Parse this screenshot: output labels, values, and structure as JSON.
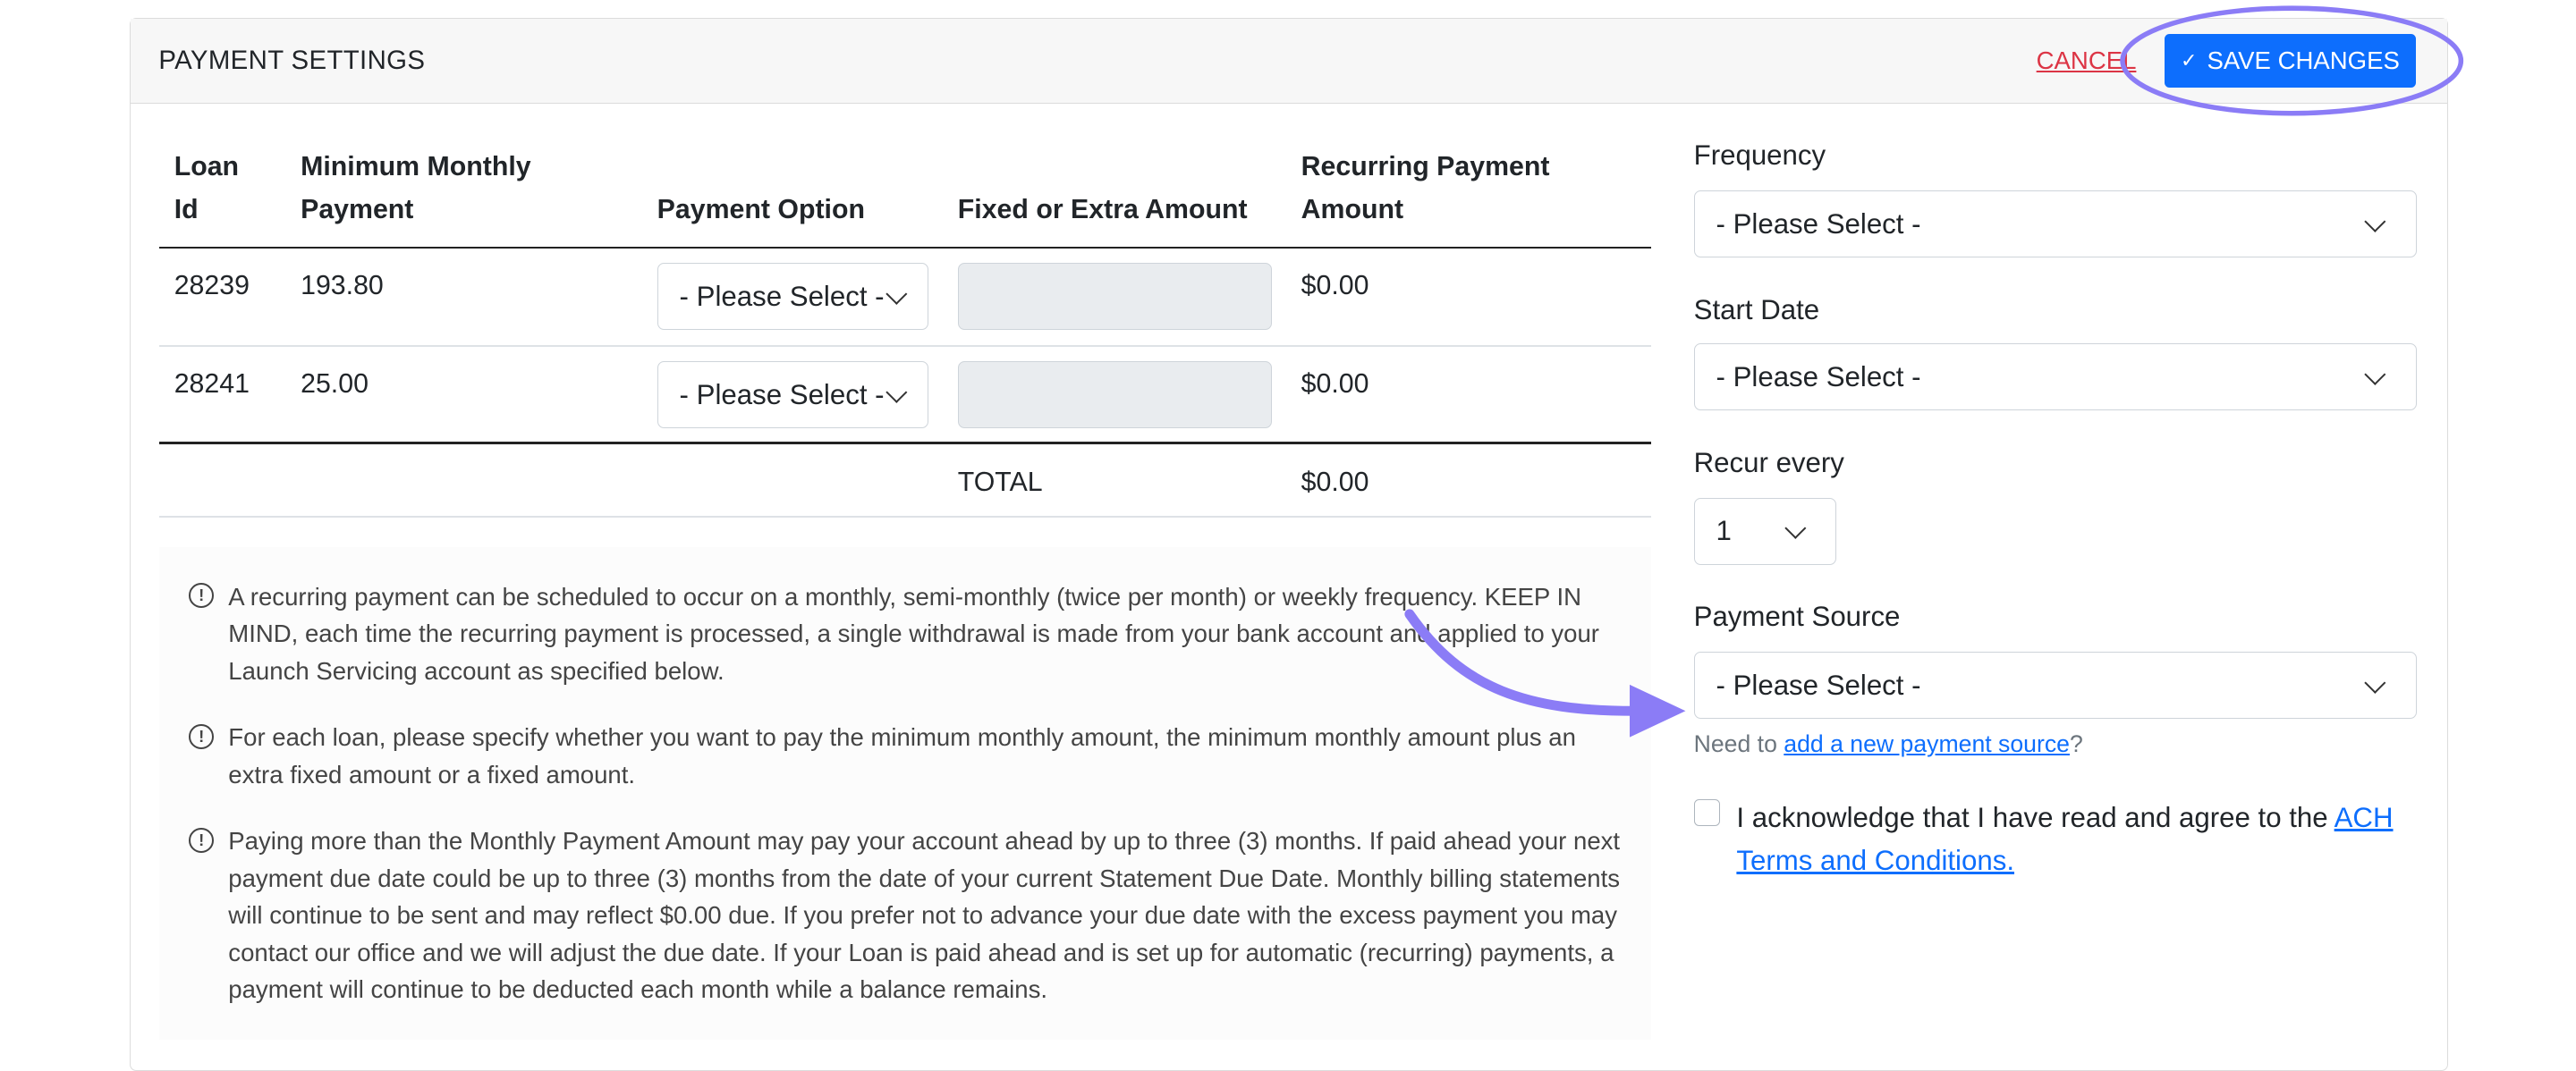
{
  "header": {
    "title": "PAYMENT SETTINGS",
    "cancel_label": "CANCEL",
    "save_label": "SAVE CHANGES",
    "save_icon": "check-icon"
  },
  "table": {
    "columns": [
      {
        "l1": "Loan",
        "l2": "Id"
      },
      {
        "l1": "Minimum Monthly",
        "l2": "Payment"
      },
      {
        "l1": "",
        "l2": "Payment Option"
      },
      {
        "l1": "",
        "l2": "Fixed or Extra Amount"
      },
      {
        "l1": "Recurring Payment",
        "l2": "Amount"
      }
    ],
    "rows": [
      {
        "loan_id": "28239",
        "min_payment": "193.80",
        "payment_option": "- Please Select -",
        "amount": "",
        "recurring": "$0.00"
      },
      {
        "loan_id": "28241",
        "min_payment": "25.00",
        "payment_option": "- Please Select -",
        "amount": "",
        "recurring": "$0.00"
      }
    ],
    "total_label": "TOTAL",
    "total_value": "$0.00"
  },
  "notes": [
    "A recurring payment can be scheduled to occur on a monthly, semi-monthly (twice per month) or weekly frequency. KEEP IN MIND, each time the recurring payment is processed, a single withdrawal is made from your bank account and applied to your Launch Servicing account as specified below.",
    "For each loan, please specify whether you want to pay the minimum monthly amount, the minimum monthly amount plus an extra fixed amount or a fixed amount.",
    "Paying more than the Monthly Payment Amount may pay your account ahead by up to three (3) months. If paid ahead your next payment due date could be up to three (3) months from the date of your current Statement Due Date. Monthly billing statements will continue to be sent and may reflect $0.00 due. If you prefer not to advance your due date with the excess payment you may contact our office and we will adjust the due date. If your Loan is paid ahead and is set up for automatic (recurring) payments, a payment will continue to be deducted each month while a balance remains."
  ],
  "note_icon": "exclamation-circle-icon",
  "form": {
    "frequency": {
      "label": "Frequency",
      "value": "- Please Select -"
    },
    "start_date": {
      "label": "Start Date",
      "value": "- Please Select -"
    },
    "recur_every": {
      "label": "Recur every",
      "value": "1"
    },
    "payment_source": {
      "label": "Payment Source",
      "value": "- Please Select -"
    },
    "need_to_prefix": "Need to ",
    "need_to_link": "add a new payment source",
    "need_to_suffix": "?",
    "ack_text": "I acknowledge that I have read and agree to the ",
    "ack_link": "ACH Terms and Conditions.",
    "ack_checked": false
  },
  "colors": {
    "primary": "#0d6efd",
    "danger": "#dc3545",
    "annotation": "#8b7cf6"
  }
}
